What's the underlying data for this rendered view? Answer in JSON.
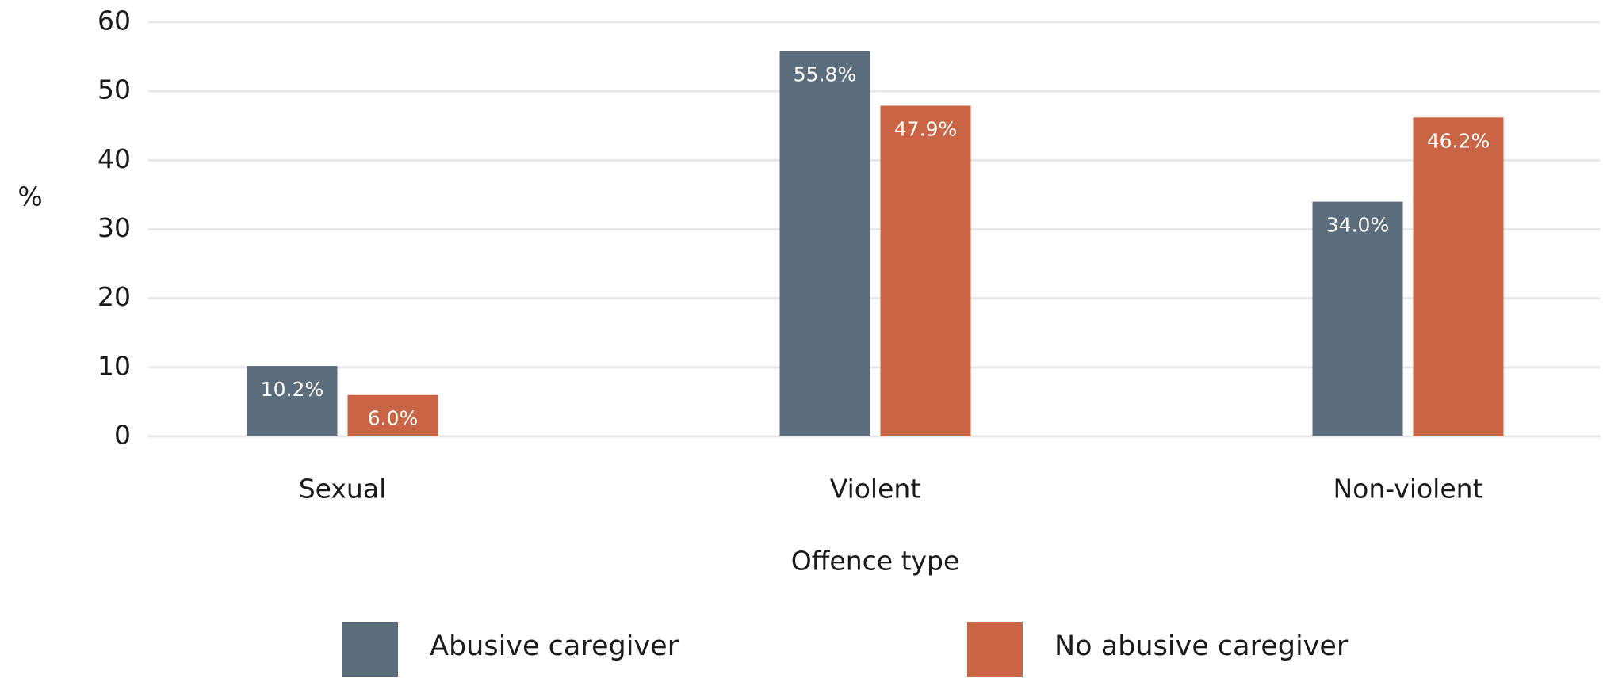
{
  "chart_data": {
    "type": "bar",
    "x_label": "Offence type",
    "y_label": "%",
    "categories": [
      "Sexual",
      "Violent",
      "Non-violent"
    ],
    "series": [
      {
        "name": "Abusive caregiver",
        "color": "#5b6d7c",
        "values": [
          10.2,
          55.8,
          34.0
        ],
        "value_labels": [
          "10.2%",
          "55.8%",
          "34.0%"
        ]
      },
      {
        "name": "No abusive caregiver",
        "color": "#c96544",
        "values": [
          6.0,
          47.9,
          46.2
        ],
        "value_labels": [
          "6.0%",
          "47.9%",
          "46.2%"
        ]
      }
    ],
    "ylim": [
      0,
      60
    ],
    "yticks": [
      0,
      10,
      20,
      30,
      40,
      50,
      60
    ],
    "grid": true
  }
}
